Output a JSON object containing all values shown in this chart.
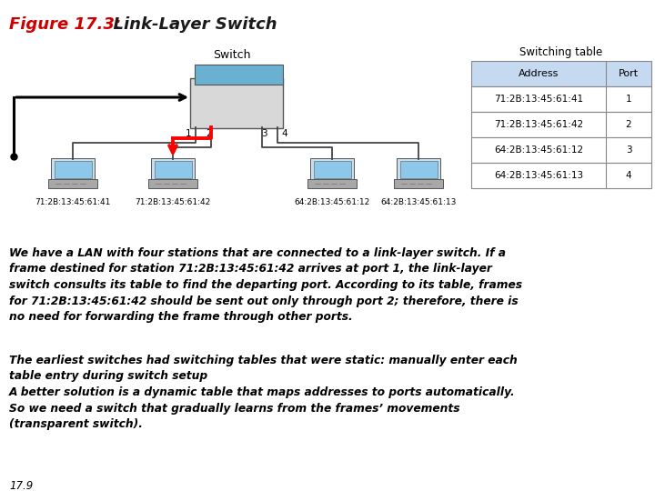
{
  "title_part1": "Figure 17.3:",
  "title_part2": "  Link-Layer Switch",
  "switch_label": "Switch",
  "table_title": "Switching table",
  "table_col1": "Address",
  "table_col2": "Port",
  "table_rows": [
    [
      "71:2B:13:45:61:41",
      "1"
    ],
    [
      "71:2B:13:45:61:42",
      "2"
    ],
    [
      "64:2B:13:45:61:12",
      "3"
    ],
    [
      "64:2B:13:45:61:13",
      "4"
    ]
  ],
  "station_labels": [
    "71:2B:13:45:61:41",
    "71:2B:13:45:61:42",
    "64:2B:13:45:61:12",
    "64:2B:13:45:61:13"
  ],
  "body_text1": "We have a LAN with four stations that are connected to a link-layer switch. If a\nframe destined for station 71:2B:13:45:61:42 arrives at port 1, the link-layer\nswitch consults its table to find the departing port. According to its table, frames\nfor 71:2B:13:45:61:42 should be sent out only through port 2; therefore, there is\nno need for forwarding the frame through other ports.",
  "body_text2": "The earliest switches had switching tables that were static: manually enter each\ntable entry during switch setup\nA better solution is a dynamic table that maps addresses to ports automatically.\nSo we need a switch that gradually learns from the frames’ movements\n(transparent switch).",
  "footer_text": "17.9",
  "bg_color": "#ffffff",
  "title_color1": "#cc0000",
  "title_color2": "#1a1a1a",
  "table_header_bg": "#c5d9f1",
  "table_border": "#888888",
  "line_color": "#444444",
  "switch_body_color": "#d8d8d8",
  "switch_top_color": "#6ab0d0",
  "laptop_screen_color": "#b8d8ee",
  "laptop_body_color": "#a0a0a0"
}
